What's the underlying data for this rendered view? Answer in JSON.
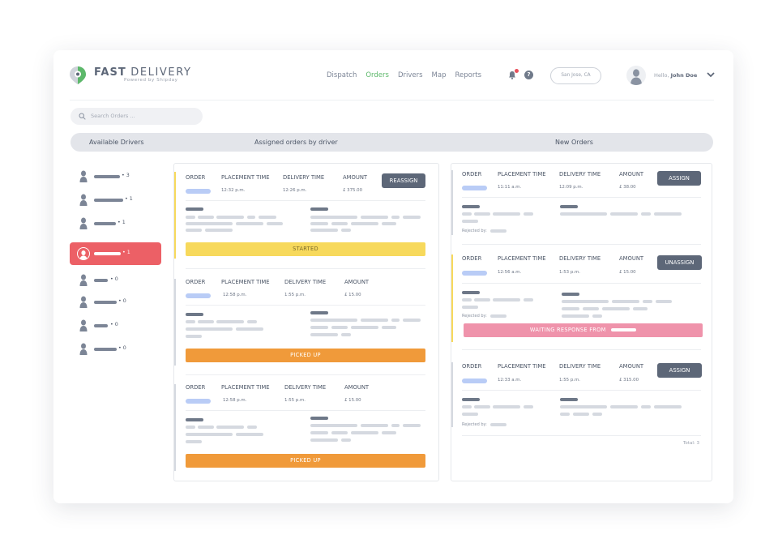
{
  "brand": {
    "name_bold": "FAST",
    "name_light": "DELIVERY",
    "powered": "Powered by Shipday",
    "accent_color": "#5cb86a"
  },
  "nav": [
    "Dispatch",
    "Orders",
    "Drivers",
    "Map",
    "Reports"
  ],
  "nav_active": "Orders",
  "header": {
    "location": "San Jose, CA",
    "hello": "Hello,",
    "user": "John Doe",
    "help_glyph": "?"
  },
  "search": {
    "placeholder": "Search Orders ..."
  },
  "sections": {
    "available": "Available Drivers",
    "assigned": "Assigned orders by driver",
    "new": "New Orders"
  },
  "drivers": [
    {
      "count": "• 3"
    },
    {
      "count": "• 1"
    },
    {
      "count": "• 1"
    },
    {
      "count": "• 1",
      "selected": true
    },
    {
      "count": "• 0"
    },
    {
      "count": "• 0"
    },
    {
      "count": "• 0"
    },
    {
      "count": "• 0"
    }
  ],
  "columns": {
    "order": "ORDER",
    "placement": "PLACEMENT TIME",
    "delivery": "DELIVERY TIME",
    "amount": "AMOUNT"
  },
  "assigned_orders": [
    {
      "placement": "12:32 p.m.",
      "delivery": "12:26 p.m.",
      "amount": "£ 375.00",
      "button": "REASSIGN",
      "status": "STARTED",
      "status_color": "#f7d95c"
    },
    {
      "placement": "12:58 p.m.",
      "delivery": "1:55 p.m.",
      "amount": "£ 15.00",
      "status": "PICKED UP",
      "status_color": "#f09a3a"
    },
    {
      "placement": "12:58 p.m.",
      "delivery": "1:55 p.m.",
      "amount": "£ 15.00",
      "status": "PICKED UP",
      "status_color": "#f09a3a"
    }
  ],
  "new_orders": [
    {
      "placement": "11:11 a.m.",
      "delivery": "12:09 p.m.",
      "amount": "£ 38.00",
      "button": "ASSIGN",
      "rejected": "Rejected by:"
    },
    {
      "placement": "12:56 a.m.",
      "delivery": "1:53 p.m.",
      "amount": "£ 15.00",
      "button": "UNASSIGN",
      "rejected": "Rejected by:",
      "status": "WAITING RESPONSE FROM",
      "status_color": "#ef93ab"
    },
    {
      "placement": "12:33 a.m.",
      "delivery": "1:55 p.m.",
      "amount": "£ 315.00",
      "button": "ASSIGN",
      "rejected": "Rejected by:"
    }
  ],
  "total": "Total: 3"
}
